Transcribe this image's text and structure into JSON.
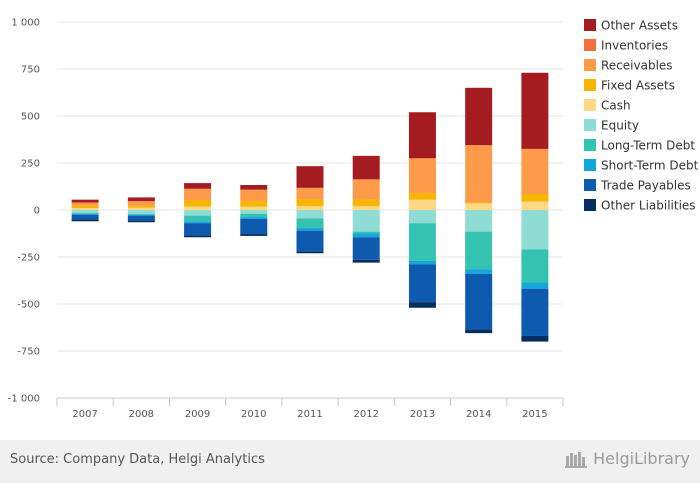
{
  "chart_data": {
    "type": "bar",
    "stacked": true,
    "categories": [
      "2007",
      "2008",
      "2009",
      "2010",
      "2011",
      "2012",
      "2013",
      "2014",
      "2015"
    ],
    "ylim": [
      -1000,
      1000
    ],
    "yticks": [
      1000,
      750,
      500,
      250,
      0,
      -250,
      -500,
      -750,
      -1000
    ],
    "ytick_labels": [
      "1 000",
      "750",
      "500",
      "250",
      "0",
      "-250",
      "-500",
      "-750",
      "-1 000"
    ],
    "grid": true,
    "legend_position": "right",
    "series": [
      {
        "name": "Cash",
        "color": "#fdd985",
        "values": [
          10,
          12,
          18,
          18,
          20,
          20,
          55,
          35,
          45
        ]
      },
      {
        "name": "Fixed Assets",
        "color": "#f7b500",
        "values": [
          12,
          10,
          35,
          30,
          38,
          38,
          35,
          5,
          40
        ]
      },
      {
        "name": "Receivables",
        "color": "#fd9b4a",
        "values": [
          18,
          25,
          60,
          60,
          60,
          105,
          185,
          305,
          240
        ]
      },
      {
        "name": "Inventories",
        "color": "#f2713a",
        "values": [
          0,
          0,
          0,
          0,
          0,
          0,
          0,
          0,
          0
        ]
      },
      {
        "name": "Other Assets",
        "color": "#a51c20",
        "values": [
          15,
          20,
          30,
          25,
          115,
          125,
          245,
          305,
          405
        ]
      },
      {
        "name": "Equity",
        "color": "#8fdcd4",
        "values": [
          -15,
          -20,
          -30,
          -20,
          -45,
          -115,
          -70,
          -115,
          -210
        ]
      },
      {
        "name": "Long-Term Debt",
        "color": "#33c3b0",
        "values": [
          -5,
          -5,
          -30,
          -18,
          -50,
          -10,
          -200,
          -200,
          -175
        ]
      },
      {
        "name": "Short-Term Debt",
        "color": "#14a5d9",
        "values": [
          -5,
          -5,
          -10,
          -10,
          -15,
          -20,
          -20,
          -25,
          -35
        ]
      },
      {
        "name": "Trade Payables",
        "color": "#0d5aaf",
        "values": [
          -25,
          -25,
          -65,
          -80,
          -110,
          -120,
          -200,
          -295,
          -250
        ]
      },
      {
        "name": "Other Liabilities",
        "color": "#062d5f",
        "values": [
          -10,
          -10,
          -10,
          -10,
          -10,
          -15,
          -30,
          -20,
          -30
        ]
      }
    ],
    "legend_order": [
      "Other Assets",
      "Inventories",
      "Receivables",
      "Fixed Assets",
      "Cash",
      "Equity",
      "Long-Term Debt",
      "Short-Term Debt",
      "Trade Payables",
      "Other Liabilities"
    ]
  },
  "footer": {
    "source": "Source: Company Data, Helgi Analytics",
    "brand": "HelgiLibrary"
  },
  "colors": {
    "grid": "#e6e6e6",
    "axis": "#c8c8c8",
    "footer_bg": "#f0f0f0"
  }
}
